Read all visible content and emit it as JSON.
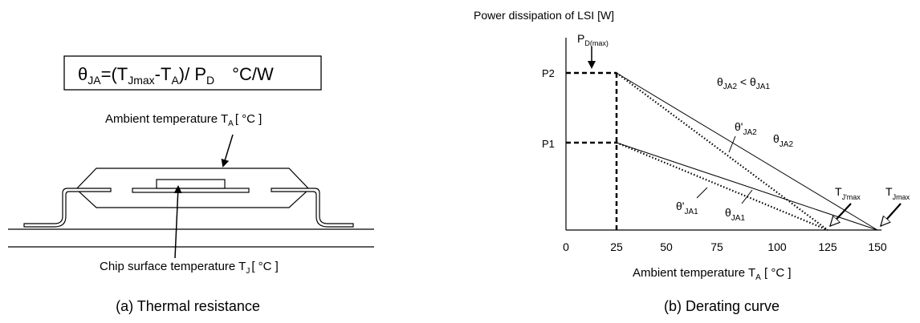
{
  "panel_a": {
    "formula": {
      "theta": "θ",
      "theta_sub": "JA",
      "eq_open": "=(T",
      "tj_sub": "Jmax",
      "minus_t": "-T",
      "ta_sub": "A",
      "close_div": ")/ P",
      "pd_sub": "D",
      "units": "°C/W"
    },
    "ambient_label": {
      "text": "Ambient temperature T",
      "sub": "A",
      "unit": "[ °C ]"
    },
    "chip_label": {
      "text": "Chip surface temperature T",
      "sub": "J",
      "unit": "[ °C ]"
    },
    "caption": "(a) Thermal resistance"
  },
  "panel_b": {
    "y_axis_title": "Power dissipation of LSI [W]",
    "pd_max": {
      "text": "P",
      "sub": "D(max)"
    },
    "p2_label": "P2",
    "p1_label": "P1",
    "inequality": {
      "a": "θ",
      "a_sub": "JA2",
      "op": " < ",
      "b": "θ",
      "b_sub": "JA1"
    },
    "curve_labels": {
      "theta_p_ja2": {
        "text": "θ'",
        "sub": "JA2"
      },
      "theta_ja2": {
        "text": "θ",
        "sub": "JA2"
      },
      "theta_p_ja1": {
        "text": "θ'",
        "sub": "JA1"
      },
      "theta_ja1": {
        "text": "θ",
        "sub": "JA1"
      }
    },
    "tj_prime_max": {
      "text": "T",
      "sub": "J'max"
    },
    "tj_max": {
      "text": "T",
      "sub": "Jmax"
    },
    "x_ticks": [
      "0",
      "25",
      "50",
      "75",
      "100",
      "125",
      "150"
    ],
    "x_label": {
      "text": "Ambient temperature T",
      "sub": "A",
      "unit": " [ °C ]"
    },
    "caption": "(b) Derating curve"
  }
}
